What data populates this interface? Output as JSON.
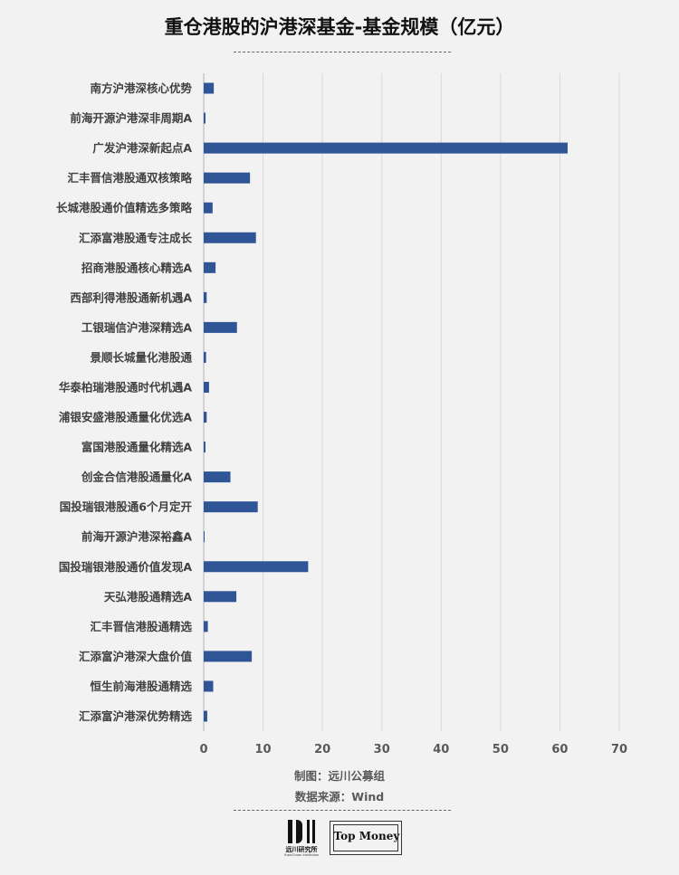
{
  "title": "重仓港股的沪港深基金-基金规模（亿元）",
  "footer": {
    "credit": "制图：远川公募组",
    "source": "数据来源：Wind"
  },
  "logos": [
    {
      "text": "远川研究所",
      "subtext": "YuanChuan Institution",
      "icon": "yuanchuan-logo-icon"
    },
    {
      "text": "Top Money",
      "icon": "top-money-logo-icon"
    }
  ],
  "colors": {
    "bar": "#2f5597",
    "grid": "#d9d9d9",
    "background": "#f2f2f2"
  },
  "chart_data": {
    "type": "bar",
    "orientation": "horizontal",
    "title": "重仓港股的沪港深基金-基金规模（亿元）",
    "categories": [
      "南方沪港深核心优势",
      "前海开源沪港深非周期A",
      "广发沪港深新起点A",
      "汇丰晋信港股通双核策略",
      "长城港股通价值精选多策略",
      "汇添富港股通专注成长",
      "招商港股通核心精选A",
      "西部利得港股通新机遇A",
      "工银瑞信沪港深精选A",
      "景顺长城量化港股通",
      "华泰柏瑞港股通时代机遇A",
      "浦银安盛港股通量化优选A",
      "富国港股通量化精选A",
      "创金合信港股通量化A",
      "国投瑞银港股通6个月定开",
      "前海开源沪港深裕鑫A",
      "国投瑞银港股通价值发现A",
      "天弘港股通精选A",
      "汇丰晋信港股通精选",
      "汇添富沪港深大盘价值",
      "恒生前海港股通精选",
      "汇添富沪港深优势精选"
    ],
    "values": [
      1.7,
      0.3,
      61.3,
      7.8,
      1.5,
      8.8,
      2.0,
      0.5,
      5.6,
      0.4,
      0.9,
      0.5,
      0.3,
      4.5,
      9.1,
      0.1,
      17.6,
      5.5,
      0.7,
      8.1,
      1.6,
      0.6
    ],
    "xlim": [
      0,
      70
    ],
    "xticks": [
      0,
      10,
      20,
      30,
      40,
      50,
      60,
      70
    ],
    "grid": true,
    "legend": "none"
  }
}
